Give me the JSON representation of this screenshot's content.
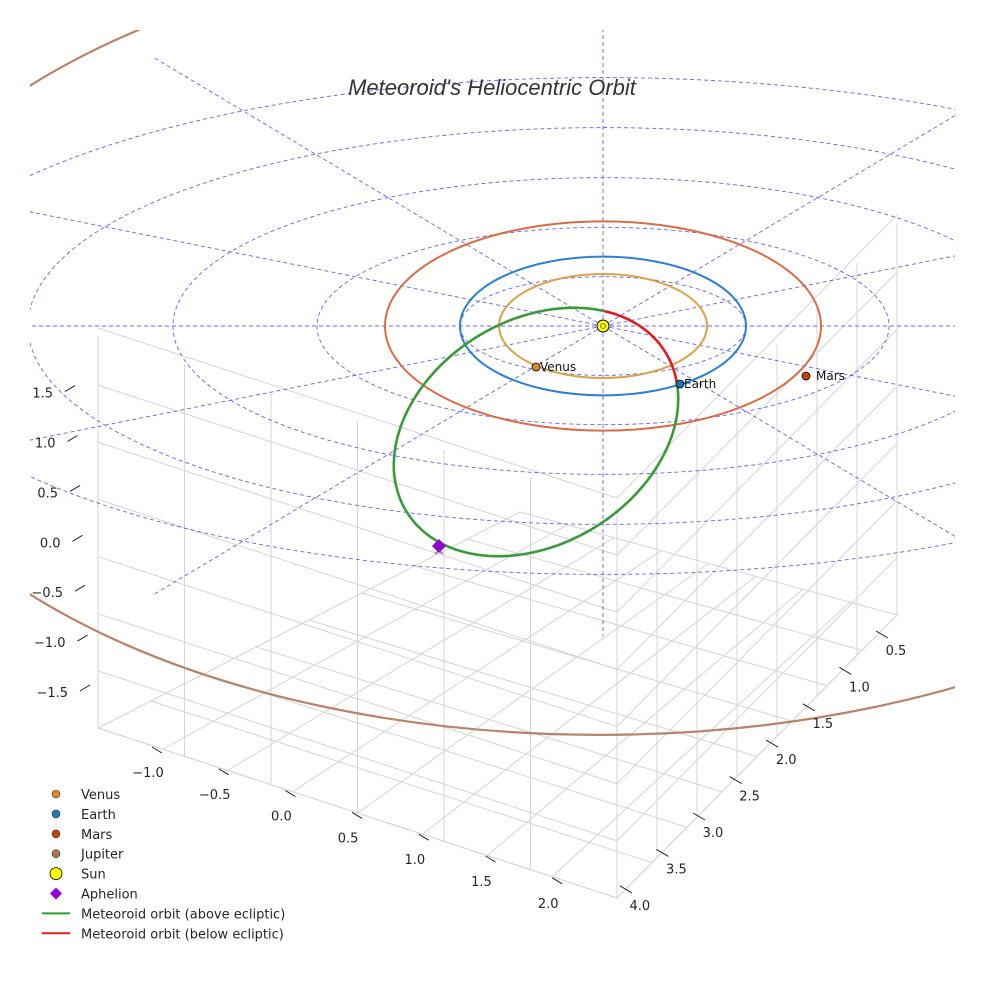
{
  "chart_data": {
    "type": "scatter",
    "title": "Meteoroid's Heliocentric Orbit",
    "projection": "3d",
    "axes": {
      "x_ticks": [
        "−1.0",
        "−0.5",
        "0.0",
        "0.5",
        "1.0",
        "1.5",
        "2.0"
      ],
      "y_ticks": [
        "0.5",
        "1.0",
        "1.5",
        "2.0",
        "2.5",
        "3.0",
        "3.5",
        "4.0"
      ],
      "z_ticks": [
        "−1.5",
        "−1.0",
        "−0.5",
        "0.0",
        "0.5",
        "1.0",
        "1.5"
      ],
      "grid": true
    },
    "planet_orbits_au": {
      "Venus": 0.72,
      "Earth": 1.0,
      "Mars": 1.52,
      "Jupiter": 5.2
    },
    "points": [
      {
        "name": "Sun",
        "label": "",
        "color": "#ffff00"
      },
      {
        "name": "Venus",
        "label": "Venus",
        "color": "#d98a2b"
      },
      {
        "name": "Earth",
        "label": "Earth",
        "color": "#1f77b4"
      },
      {
        "name": "Mars",
        "label": "Mars",
        "color": "#c1440e"
      },
      {
        "name": "Aphelion",
        "label": "",
        "color": "#9400d3"
      }
    ],
    "legend": {
      "position": "bottom-left",
      "entries": [
        {
          "label": "Venus",
          "marker": "circle",
          "color": "#d98a2b"
        },
        {
          "label": "Earth",
          "marker": "circle",
          "color": "#1f77b4"
        },
        {
          "label": "Mars",
          "marker": "circle",
          "color": "#c1440e"
        },
        {
          "label": "Jupiter",
          "marker": "circle",
          "color": "#b5764e"
        },
        {
          "label": "Sun",
          "marker": "circle-large",
          "color": "#ffff00"
        },
        {
          "label": "Aphelion",
          "marker": "diamond",
          "color": "#9400d3"
        },
        {
          "label": "Meteoroid orbit (above ecliptic)",
          "marker": "line",
          "color": "#2ca02c"
        },
        {
          "label": "Meteoroid orbit (below ecliptic)",
          "marker": "line",
          "color": "#e41a1c"
        }
      ]
    }
  }
}
